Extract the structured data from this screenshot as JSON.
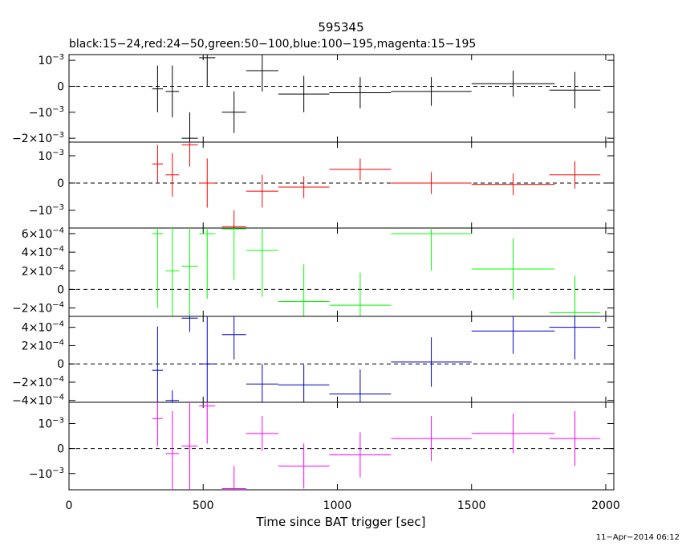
{
  "chart_data": {
    "type": "scatter",
    "title": "595345",
    "subtitle": "black:15−24,red:24−50,green:50−100,blue:100−195,magenta:15−195",
    "xlabel": "Time since BAT trigger [sec]",
    "xlim": [
      0,
      2030
    ],
    "xticks": [
      0,
      500,
      1000,
      1500,
      2000
    ],
    "footer": "11−Apr−2014 06:12",
    "panels": [
      {
        "name": "black:15−24",
        "color": "#000000",
        "ylim": [
          -0.00215,
          0.00122
        ],
        "yticks": [
          0.001,
          0,
          -0.001,
          -0.002
        ],
        "yticklabels": [
          "10−3",
          "0",
          "−10−3",
          "−2×10−3"
        ],
        "points": [
          {
            "x": 330,
            "xerr": 20,
            "y": -0.0001,
            "yerr": 0.0009
          },
          {
            "x": 385,
            "xerr": 25,
            "y": -0.0002,
            "yerr": 0.001
          },
          {
            "x": 450,
            "xerr": 30,
            "y": -0.002,
            "yerr": 0.001
          },
          {
            "x": 515,
            "xerr": 30,
            "y": 0.0011,
            "yerr": 0.0011
          },
          {
            "x": 615,
            "xerr": 45,
            "y": -0.001,
            "yerr": 0.0008
          },
          {
            "x": 720,
            "xerr": 60,
            "y": 0.0006,
            "yerr": 0.0008
          },
          {
            "x": 875,
            "xerr": 95,
            "y": -0.0003,
            "yerr": 0.0007
          },
          {
            "x": 1085,
            "xerr": 115,
            "y": -0.00025,
            "yerr": 0.0006
          },
          {
            "x": 1350,
            "xerr": 150,
            "y": -0.0002,
            "yerr": 0.00055
          },
          {
            "x": 1655,
            "xerr": 155,
            "y": 0.0001,
            "yerr": 0.0005
          },
          {
            "x": 1885,
            "xerr": 95,
            "y": -0.00015,
            "yerr": 0.0007
          }
        ]
      },
      {
        "name": "red:24−50",
        "color": "#ff0000",
        "ylim": [
          -0.00165,
          0.0015
        ],
        "yticks": [
          0.001,
          0,
          -0.001
        ],
        "yticklabels": [
          "10−3",
          "0",
          "−10−3"
        ],
        "points": [
          {
            "x": 330,
            "xerr": 20,
            "y": 0.0007,
            "yerr": 0.0007
          },
          {
            "x": 385,
            "xerr": 25,
            "y": 0.0003,
            "yerr": 0.0008
          },
          {
            "x": 450,
            "xerr": 30,
            "y": 0.0014,
            "yerr": 0.0008
          },
          {
            "x": 515,
            "xerr": 30,
            "y": 0.0,
            "yerr": 0.0009
          },
          {
            "x": 615,
            "xerr": 45,
            "y": -0.0016,
            "yerr": 0.0006
          },
          {
            "x": 720,
            "xerr": 60,
            "y": -0.0003,
            "yerr": 0.0006
          },
          {
            "x": 875,
            "xerr": 95,
            "y": -0.00015,
            "yerr": 0.0004
          },
          {
            "x": 1085,
            "xerr": 115,
            "y": 0.0005,
            "yerr": 0.0004
          },
          {
            "x": 1350,
            "xerr": 150,
            "y": 0.0,
            "yerr": 0.0004
          },
          {
            "x": 1655,
            "xerr": 155,
            "y": -5e-05,
            "yerr": 0.0004
          },
          {
            "x": 1885,
            "xerr": 95,
            "y": 0.0003,
            "yerr": 0.0005
          }
        ]
      },
      {
        "name": "green:50−100",
        "color": "#00ff00",
        "ylim": [
          -0.00029,
          0.00066
        ],
        "yticks": [
          0.0006,
          0.0004,
          0.0002,
          0,
          -0.0002
        ],
        "yticklabels": [
          "6×10−4",
          "4×10−4",
          "2×10−4",
          "0",
          "−2×10−4"
        ],
        "points": [
          {
            "x": 330,
            "xerr": 20,
            "y": 0.0006,
            "yerr": 0.0008
          },
          {
            "x": 385,
            "xerr": 25,
            "y": 0.0002,
            "yerr": 0.0008
          },
          {
            "x": 450,
            "xerr": 30,
            "y": 0.00025,
            "yerr": 0.0007
          },
          {
            "x": 515,
            "xerr": 30,
            "y": 0.0006,
            "yerr": 0.0007
          },
          {
            "x": 615,
            "xerr": 45,
            "y": 0.00065,
            "yerr": 0.00055
          },
          {
            "x": 720,
            "xerr": 60,
            "y": 0.00042,
            "yerr": 0.0005
          },
          {
            "x": 875,
            "xerr": 95,
            "y": -0.00013,
            "yerr": 0.0004
          },
          {
            "x": 1085,
            "xerr": 115,
            "y": -0.00017,
            "yerr": 0.00035
          },
          {
            "x": 1350,
            "xerr": 150,
            "y": 0.0006,
            "yerr": 0.0004
          },
          {
            "x": 1655,
            "xerr": 155,
            "y": 0.00022,
            "yerr": 0.00033
          },
          {
            "x": 1885,
            "xerr": 95,
            "y": -0.00025,
            "yerr": 0.0004
          }
        ]
      },
      {
        "name": "blue:100−195",
        "color": "#0000cc",
        "ylim": [
          -0.00042,
          0.00052
        ],
        "yticks": [
          0.0004,
          0.0002,
          0,
          -0.0002,
          -0.0004
        ],
        "yticklabels": [
          "4×10−4",
          "2×10−4",
          "0",
          "−2×10−4",
          "−4×10−4"
        ],
        "points": [
          {
            "x": 330,
            "xerr": 20,
            "y": -7e-05,
            "yerr": 0.00048
          },
          {
            "x": 385,
            "xerr": 25,
            "y": -0.0004,
            "yerr": 0.00011
          },
          {
            "x": 450,
            "xerr": 30,
            "y": 0.0005,
            "yerr": 0.00015
          },
          {
            "x": 515,
            "xerr": 30,
            "y": 0.0,
            "yerr": 0.00055
          },
          {
            "x": 615,
            "xerr": 45,
            "y": 0.00032,
            "yerr": 0.00027
          },
          {
            "x": 720,
            "xerr": 60,
            "y": -0.00022,
            "yerr": 0.00022
          },
          {
            "x": 875,
            "xerr": 95,
            "y": -0.00023,
            "yerr": 0.00022
          },
          {
            "x": 1085,
            "xerr": 115,
            "y": -0.00033,
            "yerr": 0.00027
          },
          {
            "x": 1350,
            "xerr": 150,
            "y": 2e-05,
            "yerr": 0.00027
          },
          {
            "x": 1655,
            "xerr": 155,
            "y": 0.00036,
            "yerr": 0.00025
          },
          {
            "x": 1885,
            "xerr": 95,
            "y": 0.0004,
            "yerr": 0.00035
          }
        ]
      },
      {
        "name": "magenta:15−195",
        "color": "#ff00ff",
        "ylim": [
          -0.00165,
          0.00185
        ],
        "yticks": [
          0.001,
          0,
          -0.001
        ],
        "yticklabels": [
          "10−3",
          "0",
          "−10−3"
        ],
        "points": [
          {
            "x": 330,
            "xerr": 20,
            "y": 0.0012,
            "yerr": 0.0011
          },
          {
            "x": 385,
            "xerr": 25,
            "y": -0.0002,
            "yerr": 0.0017
          },
          {
            "x": 450,
            "xerr": 30,
            "y": 0.0001,
            "yerr": 0.0019
          },
          {
            "x": 515,
            "xerr": 30,
            "y": 0.0017,
            "yerr": 0.0015
          },
          {
            "x": 615,
            "xerr": 45,
            "y": -0.0016,
            "yerr": 0.0009
          },
          {
            "x": 720,
            "xerr": 60,
            "y": 0.0006,
            "yerr": 0.0007
          },
          {
            "x": 875,
            "xerr": 95,
            "y": -0.0007,
            "yerr": 0.0009
          },
          {
            "x": 1085,
            "xerr": 115,
            "y": -0.00025,
            "yerr": 0.0009
          },
          {
            "x": 1350,
            "xerr": 150,
            "y": 0.0004,
            "yerr": 0.0009
          },
          {
            "x": 1655,
            "xerr": 155,
            "y": 0.0006,
            "yerr": 0.0008
          },
          {
            "x": 1885,
            "xerr": 95,
            "y": 0.0004,
            "yerr": 0.0011
          }
        ]
      }
    ]
  }
}
